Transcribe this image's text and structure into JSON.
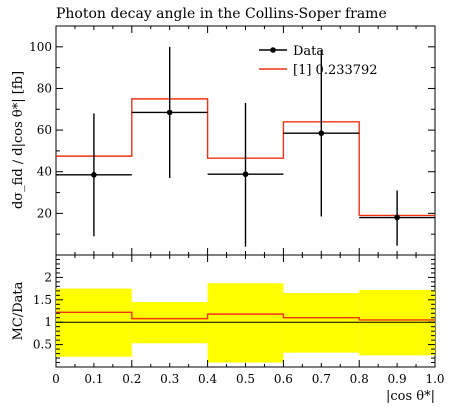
{
  "chart_data": {
    "type": "step",
    "title": "Photon decay angle in the Collins-Soper frame",
    "xlabel": "|cos θ*|",
    "ylabel_main": "dσ_fid / d|cos θ*| [fb]",
    "ylabel_ratio": "MC/Data",
    "xlim": [
      0,
      1.0
    ],
    "ylim_main": [
      0,
      110
    ],
    "ylim_ratio": [
      0,
      2.5
    ],
    "x_ticks": [
      "0",
      "0.1",
      "0.2",
      "0.3",
      "0.4",
      "0.5",
      "0.6",
      "0.7",
      "0.8",
      "0.9",
      "1.0"
    ],
    "y_ticks_main": [
      "20",
      "40",
      "60",
      "80",
      "100"
    ],
    "y_ticks_ratio": [
      "0.5",
      "1",
      "1.5",
      "2"
    ],
    "bins": [
      [
        0.0,
        0.2
      ],
      [
        0.2,
        0.4
      ],
      [
        0.4,
        0.6
      ],
      [
        0.6,
        0.8
      ],
      [
        0.8,
        1.0
      ]
    ],
    "series": [
      {
        "name": "Data",
        "kind": "points",
        "x": [
          0.1,
          0.3,
          0.5,
          0.7,
          0.9
        ],
        "y": [
          38.5,
          68.5,
          38.8,
          58.5,
          18.0
        ],
        "err_low": [
          29.5,
          31.5,
          34.8,
          40.0,
          13.5
        ],
        "err_high": [
          29.5,
          31.5,
          34.2,
          40.0,
          13.0
        ],
        "color": "#000000"
      },
      {
        "name": "[1] 0.233792",
        "kind": "histogram",
        "values": [
          47.5,
          75.0,
          46.5,
          64.0,
          19.0
        ],
        "color": "#ee3311"
      }
    ],
    "ratio": {
      "mc_ratio": [
        1.22,
        1.08,
        1.18,
        1.1,
        1.05
      ],
      "band_low": [
        0.23,
        0.53,
        0.1,
        0.32,
        0.26
      ],
      "band_high": [
        1.75,
        1.45,
        1.87,
        1.65,
        1.72
      ],
      "band_color": "#ffff00",
      "reference": 1.0
    },
    "legend_position": "top-right"
  }
}
